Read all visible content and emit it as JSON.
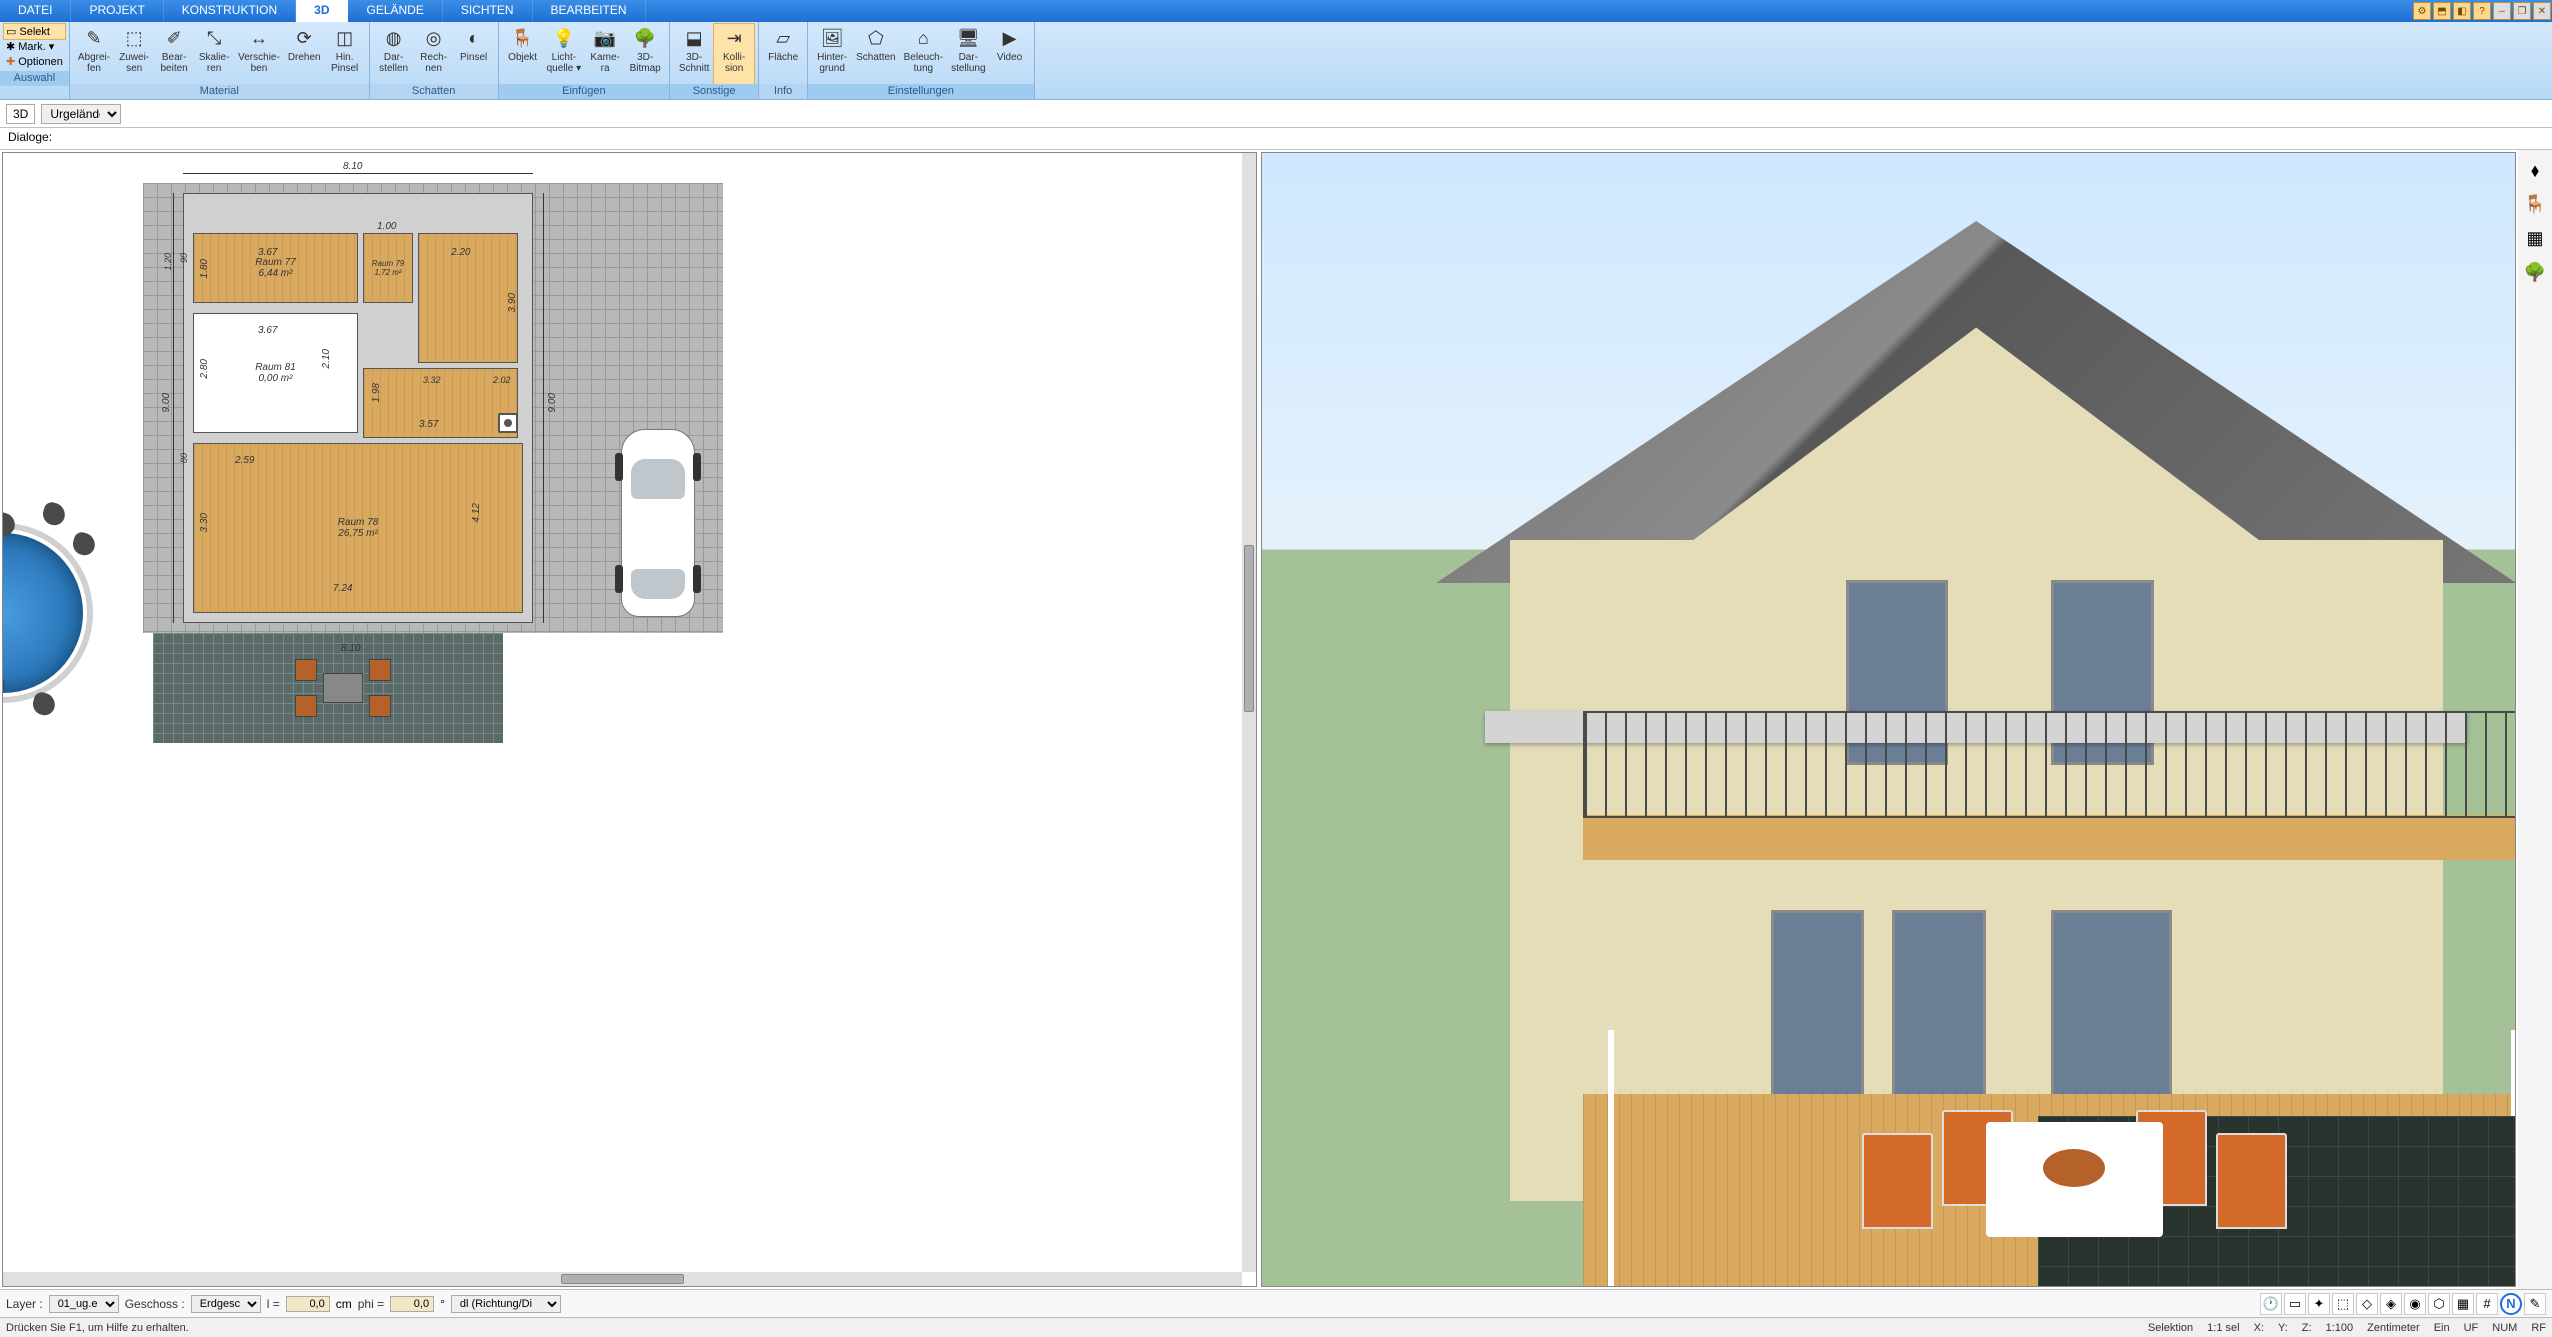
{
  "menu": {
    "tabs": [
      "DATEI",
      "PROJEKT",
      "KONSTRUKTION",
      "3D",
      "GELÄNDE",
      "SICHTEN",
      "BEARBEITEN"
    ],
    "active": 3,
    "winicons": [
      "⚙",
      "⬒",
      "◧",
      "?",
      "–",
      "❐",
      "✕"
    ]
  },
  "selpanel": {
    "selekt": "Selekt",
    "mark": "Mark.",
    "opt": "Optionen"
  },
  "ribbon": {
    "groups": [
      {
        "title": "Auswahl",
        "hl": true,
        "btns": []
      },
      {
        "title": "Material",
        "hl": false,
        "btns": [
          {
            "ic": "✎",
            "l1": "Abgrei-",
            "l2": "fen"
          },
          {
            "ic": "⬚",
            "l1": "Zuwei-",
            "l2": "sen"
          },
          {
            "ic": "✐",
            "l1": "Bear-",
            "l2": "beiten"
          },
          {
            "ic": "⤡",
            "l1": "Skalie-",
            "l2": "ren"
          },
          {
            "ic": "↔",
            "l1": "Verschie-",
            "l2": "ben"
          },
          {
            "ic": "⟳",
            "l1": "Drehen",
            "l2": ""
          },
          {
            "ic": "◫",
            "l1": "Hin.",
            "l2": "Pinsel"
          }
        ]
      },
      {
        "title": "Schatten",
        "hl": false,
        "btns": [
          {
            "ic": "◍",
            "l1": "Dar-",
            "l2": "stellen"
          },
          {
            "ic": "◎",
            "l1": "Rech-",
            "l2": "nen"
          },
          {
            "ic": "◐",
            "l1": "Pinsel",
            "l2": ""
          }
        ]
      },
      {
        "title": "Einfügen",
        "hl": true,
        "btns": [
          {
            "ic": "🪑",
            "l1": "Objekt",
            "l2": ""
          },
          {
            "ic": "💡",
            "l1": "Licht-",
            "l2": "quelle ▾"
          },
          {
            "ic": "📷",
            "l1": "Kame-",
            "l2": "ra"
          },
          {
            "ic": "🌳",
            "l1": "3D-",
            "l2": "Bitmap"
          }
        ]
      },
      {
        "title": "Sonstige",
        "hl": true,
        "btns": [
          {
            "ic": "⬓",
            "l1": "3D-",
            "l2": "Schnitt"
          },
          {
            "ic": "⇥",
            "l1": "Kolli-",
            "l2": "sion",
            "sel": true
          }
        ]
      },
      {
        "title": "Info",
        "hl": false,
        "btns": [
          {
            "ic": "▱",
            "l1": "Fläche",
            "l2": ""
          }
        ]
      },
      {
        "title": "Einstellungen",
        "hl": true,
        "btns": [
          {
            "ic": "🖼",
            "l1": "Hinter-",
            "l2": "grund"
          },
          {
            "ic": "⬠",
            "l1": "Schatten",
            "l2": ""
          },
          {
            "ic": "⌂",
            "l1": "Beleuch-",
            "l2": "tung"
          },
          {
            "ic": "🖥",
            "l1": "Dar-",
            "l2": "stellung"
          },
          {
            "ic": "▶",
            "l1": "Video",
            "l2": ""
          }
        ]
      }
    ]
  },
  "ctx": {
    "label3d": "3D",
    "layer": "Urgelände"
  },
  "dlg": {
    "label": "Dialoge:"
  },
  "plan": {
    "topdim": "8.10",
    "leftdim": "9.00",
    "rightdim": "9.00",
    "botdim": "8.10",
    "r77": {
      "name": "Raum 77",
      "area": "6,44 m²",
      "w": "3.67",
      "h": "1.80"
    },
    "r79": {
      "w": "1.00",
      "sub": "Raum 79",
      "area": "1,72 m²"
    },
    "stair": {
      "w": "2.20"
    },
    "r81": {
      "name": "Raum 81",
      "area": "0,00 m²",
      "w": "3.67",
      "h": "2.80",
      "h2": "2.10"
    },
    "hall": {
      "w": "3.57",
      "d1": "1.98",
      "d2": "3.32",
      "d3": "2.02",
      "d4": "3.90"
    },
    "r78": {
      "name": "Raum 78",
      "area": "26,75 m²",
      "w": "7.24",
      "w2": "2.59",
      "h": "3.30",
      "h2": "4.12"
    },
    "side": {
      "d90": "90",
      "d120": "1.20",
      "d80": "80"
    }
  },
  "rside": {
    "icons": [
      "⬧",
      "🪑",
      "▦",
      "🌳"
    ]
  },
  "prop": {
    "layerlbl": "Layer :",
    "layer": "01_ug.eg.o",
    "geschlbl": "Geschoss :",
    "gesch": "Erdgeschos",
    "llbl": "l =",
    "l": "0,0",
    "lunit": "cm",
    "philbl": "phi =",
    "phi": "0,0",
    "phiunit": "°",
    "dl": "dl (Richtung/Di",
    "icons": [
      "🕐",
      "▭",
      "✦",
      "⬚",
      "◇",
      "◈",
      "◉",
      "⬡",
      "▦",
      "#",
      "N",
      "✎"
    ]
  },
  "status": {
    "help": "Drücken Sie F1, um Hilfe zu erhalten.",
    "sel": "Selektion",
    "ratio": "1:1 sel",
    "x": "X:",
    "y": "Y:",
    "z": "Z:",
    "scale": "1:100",
    "unit": "Zentimeter",
    "ein": "Ein",
    "uf": "UF",
    "num": "NUM",
    "rf": "RF"
  }
}
